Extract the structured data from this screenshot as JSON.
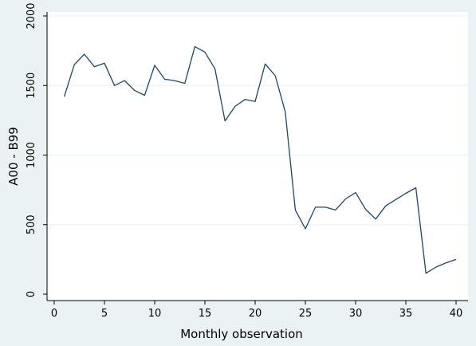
{
  "chart_data": {
    "type": "line",
    "xlabel": "Monthly observation",
    "ylabel": "A00 - B99",
    "xlim": [
      0,
      40
    ],
    "ylim": [
      0,
      2000
    ],
    "x_ticks": [
      0,
      5,
      10,
      15,
      20,
      25,
      30,
      35,
      40
    ],
    "y_ticks": [
      0,
      500,
      1000,
      1500,
      2000
    ],
    "grid": "horizontal",
    "legend": "none",
    "colors": {
      "background": "#eaf2f3",
      "plot_background": "#ffffff",
      "line": "#1a476f",
      "grid": "#eaf2f3"
    },
    "series": [
      {
        "x": [
          1,
          2,
          3,
          4,
          5,
          6,
          7,
          8,
          9,
          10,
          11,
          12,
          13,
          14,
          15,
          16,
          17,
          18,
          19,
          20,
          21,
          22,
          23,
          24,
          25,
          26,
          27,
          28,
          29,
          30,
          31,
          32,
          33,
          34,
          35,
          36,
          37,
          38,
          39,
          40
        ],
        "values": [
          1420,
          1650,
          1725,
          1635,
          1660,
          1500,
          1535,
          1465,
          1430,
          1645,
          1545,
          1535,
          1515,
          1780,
          1740,
          1620,
          1245,
          1350,
          1400,
          1385,
          1655,
          1570,
          1310,
          605,
          470,
          625,
          625,
          605,
          685,
          730,
          610,
          540,
          635,
          680,
          725,
          765,
          150,
          195,
          225,
          250
        ]
      }
    ]
  }
}
